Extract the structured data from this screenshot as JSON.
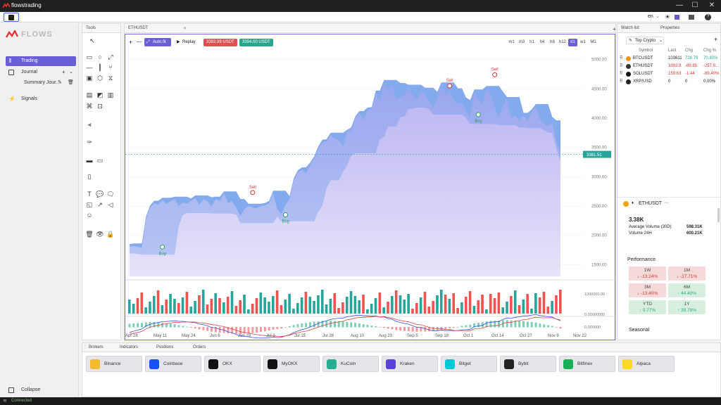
{
  "app": {
    "title": "flowstrading"
  },
  "window_controls": {
    "minimize": "—",
    "maximize": "☐",
    "close": "✕"
  },
  "topbar": {
    "lang": "en",
    "lang_caret": "⌄",
    "theme_icon": "☀",
    "help_icon": "?"
  },
  "sidebar": {
    "brand": "FLOWS",
    "items": [
      {
        "label": "Trading"
      },
      {
        "label": "Journal"
      },
      {
        "label": "Summary Jour..."
      },
      {
        "label": "Signals"
      }
    ],
    "collapse": "Collapse"
  },
  "tools_tab": {
    "label": "Tools"
  },
  "chart_tab": {
    "label": "ETHUSDT",
    "close": "✕"
  },
  "chart_toolbar": {
    "zoom_in": "+",
    "zoom_out": "—",
    "autofit": "Auto fit",
    "replay": "Replay",
    "bid": "3393.99 USDT",
    "ask": "3394.00 USDT",
    "timeframes": [
      "m1",
      "m3",
      "h1",
      "h4",
      "h8",
      "h12",
      "d1",
      "w1",
      "M1"
    ],
    "active_tf": "d1",
    "add": "+"
  },
  "chart_data": {
    "type": "area",
    "symbol": "ETHUSDT",
    "y_ticks": [
      "5000.00",
      "4500.00",
      "4000.00",
      "3500.00",
      "3000.00",
      "2500.00",
      "2000.00",
      "1500.00"
    ],
    "x_ticks": [
      "Apr 28",
      "May 11",
      "May 24",
      "Jun 6",
      "Jun 19",
      "Jul 2",
      "Jul 15",
      "Jul 28",
      "Aug 10",
      "Aug 23",
      "Sep 5",
      "Sep 18",
      "Oct 1",
      "Oct 14",
      "Oct 27",
      "Nov 9",
      "Nov 22"
    ],
    "ylim": [
      1300,
      5200
    ],
    "last_price": "3381.51",
    "volume_ticks": [
      "1000000.00",
      "0.00000000"
    ],
    "osc_ticks": [
      "0.000000"
    ],
    "close_series": [
      1810,
      1820,
      1800,
      1790,
      2280,
      2470,
      2550,
      2520,
      2600,
      2540,
      2580,
      2620,
      2500,
      2560,
      2540,
      2590,
      2640,
      2520,
      2610,
      2580,
      2490,
      2620,
      2590,
      2710,
      2550,
      2580,
      2470,
      2330,
      2450,
      2500,
      2470,
      2460,
      2500,
      2510,
      2550,
      2720,
      2440,
      2360,
      2520,
      2630,
      2930,
      3070,
      3120,
      3060,
      3200,
      3310,
      3480,
      3590,
      3600,
      3710,
      3650,
      3620,
      3520,
      3760,
      3800,
      3990,
      4080,
      3980,
      4140,
      4150,
      4430,
      4280,
      4610,
      4460,
      4560,
      4310,
      4360,
      4400,
      4530,
      4390,
      4300,
      4480,
      4410,
      4280,
      4180,
      4330,
      4570,
      4400,
      4470,
      4310,
      4240,
      4270,
      4120,
      4020,
      4450,
      4330,
      4230,
      4510,
      4410,
      4180,
      4000,
      4220,
      4320,
      4000,
      4050,
      3960,
      4050,
      3950,
      4110,
      4200,
      3980,
      3910,
      3870,
      3920,
      3600,
      3380
    ],
    "signals": [
      {
        "type": "Buy",
        "date": "May 11",
        "price": 1800
      },
      {
        "type": "Sell",
        "date": "Jun 19",
        "price": 2730
      },
      {
        "type": "Buy",
        "date": "Jul 2",
        "price": 2350
      },
      {
        "type": "Sell",
        "date": "Sep 18",
        "price": 4550
      },
      {
        "type": "Buy",
        "date": "Oct 1",
        "price": 4060
      },
      {
        "type": "Sell",
        "date": "Oct 14",
        "price": 4740
      }
    ]
  },
  "watchlist": {
    "tabs": [
      "Watch list",
      "Properties"
    ],
    "list_name": "Top Crypto",
    "columns": [
      "Symbol",
      "Last",
      "Chg",
      "Chg %"
    ],
    "rows": [
      {
        "symbol": "BTCUSDT",
        "last": "103611",
        "chg": "726.79",
        "pct": "70.80%",
        "color": "#f7931a",
        "dir": "pos"
      },
      {
        "symbol": "ETHUSDT",
        "last": "3393.9",
        "chg": "-89.85",
        "pct": "-257.9...",
        "color": "#333",
        "dir": "neg"
      },
      {
        "symbol": "SOLUSDT",
        "last": "159.63",
        "chg": "-1.44",
        "pct": "-89.40%",
        "color": "#111",
        "dir": "neg"
      },
      {
        "symbol": "XRP/USD",
        "last": "0",
        "chg": "0",
        "pct": "0.00%",
        "color": "#222",
        "dir": "flat"
      }
    ]
  },
  "properties": {
    "symbol": "ETHUSDT",
    "more": "···",
    "volume": "3.38K",
    "avg_vol_label": "Average Volume (30D)",
    "avg_vol": "598.31K",
    "vol24_label": "Volume 24H",
    "vol24": "600.21K",
    "performance_label": "Performance",
    "performance": [
      {
        "period": "1W",
        "value": "↓ -13.24%",
        "dir": "neg"
      },
      {
        "period": "1M",
        "value": "↓ -27.71%",
        "dir": "neg"
      },
      {
        "period": "3M",
        "value": "↓ -13.40%",
        "dir": "neg"
      },
      {
        "period": "6M",
        "value": "↑ 44.40%",
        "dir": "pos"
      },
      {
        "period": "YTD",
        "value": "↑ 0.77%",
        "dir": "pos"
      },
      {
        "period": "1Y",
        "value": "↑ 39.78%",
        "dir": "pos"
      }
    ],
    "seasonal_label": "Seasonal"
  },
  "bottom": {
    "tabs": [
      "Brokers",
      "Indicators",
      "Positions",
      "Orders"
    ],
    "brokers": [
      {
        "name": "Binance",
        "color": "#f3ba2f"
      },
      {
        "name": "Coinbase",
        "color": "#1652f0"
      },
      {
        "name": "OKX",
        "color": "#111"
      },
      {
        "name": "MyOKX",
        "color": "#111"
      },
      {
        "name": "KuCoin",
        "color": "#23af91"
      },
      {
        "name": "Kraken",
        "color": "#5741d9"
      },
      {
        "name": "Bitget",
        "color": "#00c8d4"
      },
      {
        "name": "Bybit",
        "color": "#222"
      },
      {
        "name": "Bitfinex",
        "color": "#16b157"
      },
      {
        "name": "Alpaca",
        "color": "#fcd72b"
      }
    ]
  },
  "status": {
    "text": "Connected"
  }
}
